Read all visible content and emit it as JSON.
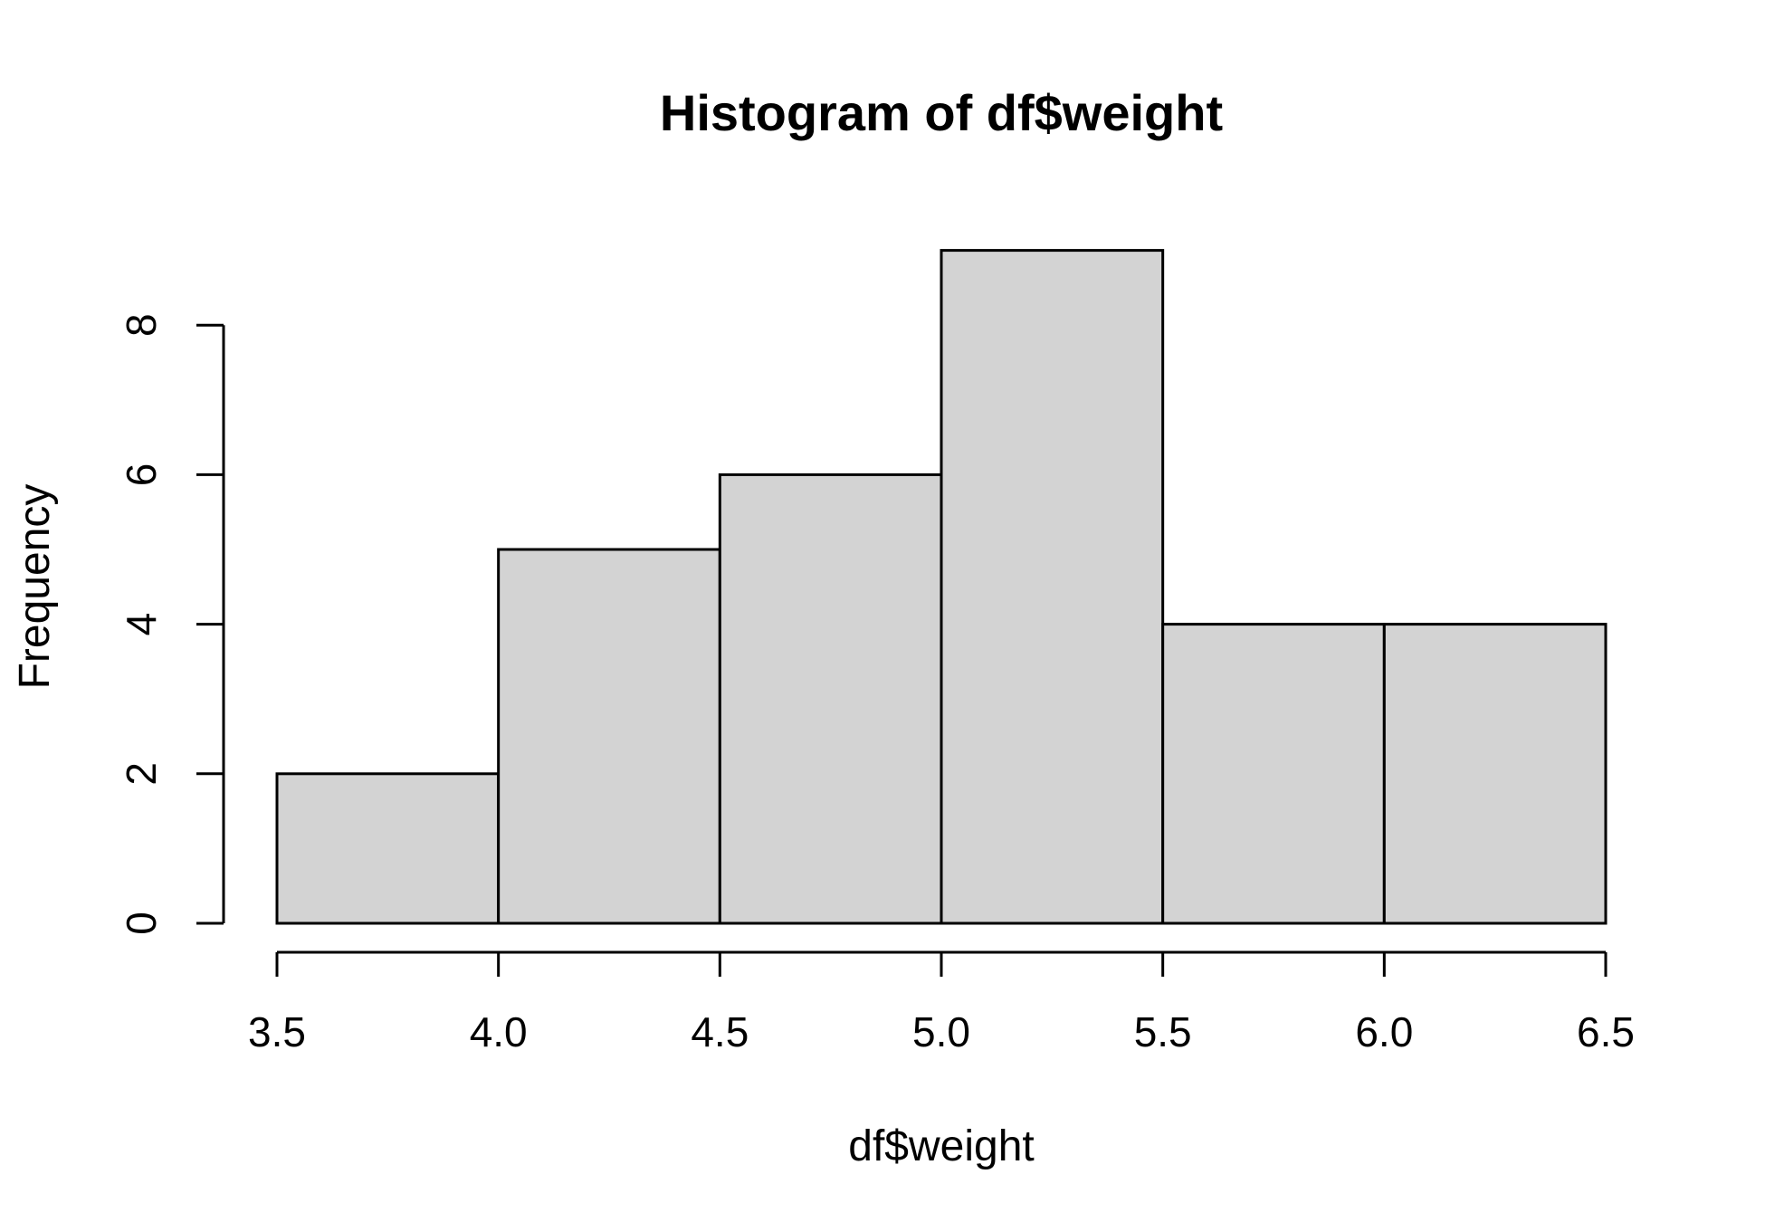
{
  "chart_data": {
    "type": "bar",
    "title": "Histogram of df$weight",
    "xlabel": "df$weight",
    "ylabel": "Frequency",
    "bins": [
      {
        "start": 3.5,
        "end": 4.0,
        "count": 2
      },
      {
        "start": 4.0,
        "end": 4.5,
        "count": 5
      },
      {
        "start": 4.5,
        "end": 5.0,
        "count": 6
      },
      {
        "start": 5.0,
        "end": 5.5,
        "count": 9
      },
      {
        "start": 5.5,
        "end": 6.0,
        "count": 4
      },
      {
        "start": 6.0,
        "end": 6.5,
        "count": 4
      }
    ],
    "xlim": [
      3.5,
      6.5
    ],
    "ylim": [
      0,
      9
    ],
    "x_ticks": [
      "3.5",
      "4.0",
      "4.5",
      "5.0",
      "5.5",
      "6.0",
      "6.5"
    ],
    "y_ticks": [
      "0",
      "2",
      "4",
      "6",
      "8"
    ],
    "grid": false,
    "colors": {
      "bar_fill": "#d3d3d3",
      "bar_stroke": "#000000"
    }
  }
}
